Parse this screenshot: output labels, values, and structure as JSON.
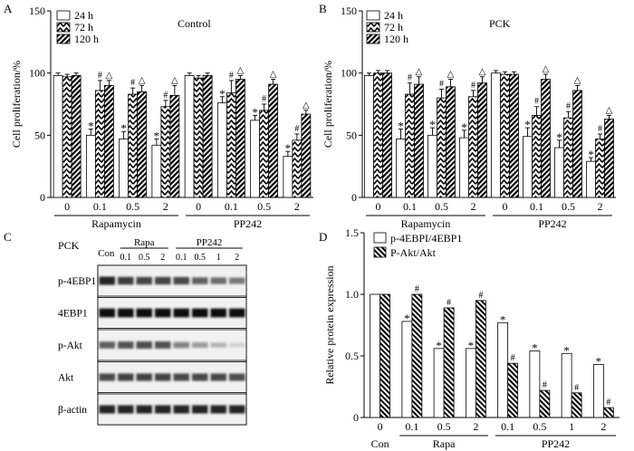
{
  "panel_labels": {
    "a": "A",
    "b": "B",
    "c": "C",
    "d": "D"
  },
  "chart_data": [
    {
      "id": "A",
      "type": "bar",
      "title": "Control",
      "ylabel": "Cell proliferation/%",
      "ylim": [
        0,
        150
      ],
      "yticks": [
        0,
        50,
        100,
        150
      ],
      "categories": [
        "0",
        "0.1",
        "0.5",
        "2",
        "0",
        "0.1",
        "0.5",
        "2"
      ],
      "groups": [
        {
          "label": "Rapamycin",
          "from": 0,
          "to": 3
        },
        {
          "label": "PP242",
          "from": 4,
          "to": 7
        }
      ],
      "legend": [
        "24 h",
        "72 h",
        "120 h"
      ],
      "legend_position": "top-left",
      "series": [
        {
          "name": "24 h",
          "values": [
            98,
            50,
            47,
            42,
            98,
            76,
            62,
            33
          ],
          "errors": [
            2,
            5,
            6,
            5,
            2,
            5,
            4,
            4
          ]
        },
        {
          "name": "72 h",
          "values": [
            97,
            86,
            83,
            73,
            96,
            84,
            70,
            46
          ],
          "errors": [
            2,
            8,
            5,
            5,
            2,
            10,
            5,
            5
          ]
        },
        {
          "name": "120 h",
          "values": [
            98,
            90,
            85,
            82,
            98,
            95,
            91,
            67
          ],
          "errors": [
            2,
            4,
            5,
            8,
            2,
            3,
            4,
            3
          ]
        }
      ],
      "annotations": [
        {
          "cat": 1,
          "series": 0,
          "text": "*"
        },
        {
          "cat": 2,
          "series": 0,
          "text": "*"
        },
        {
          "cat": 3,
          "series": 0,
          "text": "*"
        },
        {
          "cat": 5,
          "series": 0,
          "text": "*"
        },
        {
          "cat": 6,
          "series": 0,
          "text": "*"
        },
        {
          "cat": 7,
          "series": 0,
          "text": "*"
        },
        {
          "cat": 1,
          "series": 1,
          "text": "#"
        },
        {
          "cat": 2,
          "series": 1,
          "text": "#"
        },
        {
          "cat": 3,
          "series": 1,
          "text": "#"
        },
        {
          "cat": 5,
          "series": 1,
          "text": "#"
        },
        {
          "cat": 6,
          "series": 1,
          "text": "#"
        },
        {
          "cat": 7,
          "series": 1,
          "text": "#"
        },
        {
          "cat": 1,
          "series": 2,
          "text": "△"
        },
        {
          "cat": 2,
          "series": 2,
          "text": "△"
        },
        {
          "cat": 3,
          "series": 2,
          "text": "△"
        },
        {
          "cat": 5,
          "series": 2,
          "text": "△"
        },
        {
          "cat": 6,
          "series": 2,
          "text": "△"
        },
        {
          "cat": 7,
          "series": 2,
          "text": "△"
        }
      ]
    },
    {
      "id": "B",
      "type": "bar",
      "title": "PCK",
      "ylabel": "Cell proliferation/%",
      "ylim": [
        0,
        150
      ],
      "yticks": [
        0,
        50,
        100,
        150
      ],
      "categories": [
        "0",
        "0.1",
        "0.5",
        "2",
        "0",
        "0.1",
        "0.5",
        "2"
      ],
      "groups": [
        {
          "label": "Rapamycin",
          "from": 0,
          "to": 3
        },
        {
          "label": "PP242",
          "from": 4,
          "to": 7
        }
      ],
      "legend": [
        "24 h",
        "72 h",
        "120 h"
      ],
      "legend_position": "top-left",
      "series": [
        {
          "name": "24 h",
          "values": [
            98,
            47,
            50,
            48,
            100,
            49,
            40,
            29
          ],
          "errors": [
            2,
            8,
            6,
            6,
            2,
            7,
            6,
            3
          ]
        },
        {
          "name": "72 h",
          "values": [
            100,
            83,
            80,
            81,
            99,
            66,
            64,
            47
          ],
          "errors": [
            2,
            9,
            7,
            5,
            2,
            7,
            5,
            4
          ]
        },
        {
          "name": "120 h",
          "values": [
            100,
            91,
            89,
            92,
            99,
            95,
            86,
            63
          ],
          "errors": [
            2,
            6,
            6,
            5,
            2,
            4,
            4,
            3
          ]
        }
      ],
      "annotations": [
        {
          "cat": 1,
          "series": 0,
          "text": "*"
        },
        {
          "cat": 2,
          "series": 0,
          "text": "*"
        },
        {
          "cat": 3,
          "series": 0,
          "text": "*"
        },
        {
          "cat": 5,
          "series": 0,
          "text": "*"
        },
        {
          "cat": 6,
          "series": 0,
          "text": "*"
        },
        {
          "cat": 7,
          "series": 0,
          "text": "*"
        },
        {
          "cat": 1,
          "series": 1,
          "text": "#"
        },
        {
          "cat": 2,
          "series": 1,
          "text": "#"
        },
        {
          "cat": 3,
          "series": 1,
          "text": "#"
        },
        {
          "cat": 5,
          "series": 1,
          "text": "#"
        },
        {
          "cat": 6,
          "series": 1,
          "text": "#"
        },
        {
          "cat": 7,
          "series": 1,
          "text": "#"
        },
        {
          "cat": 1,
          "series": 2,
          "text": "△"
        },
        {
          "cat": 2,
          "series": 2,
          "text": "△"
        },
        {
          "cat": 3,
          "series": 2,
          "text": "△"
        },
        {
          "cat": 5,
          "series": 2,
          "text": "△"
        },
        {
          "cat": 6,
          "series": 2,
          "text": "△"
        },
        {
          "cat": 7,
          "series": 2,
          "text": "△"
        }
      ]
    },
    {
      "id": "D",
      "type": "bar",
      "title": "",
      "ylabel": "Relative protein expression",
      "ylim": [
        0,
        1.5
      ],
      "yticks": [
        0,
        0.5,
        1.0,
        1.5
      ],
      "ytick_labels": [
        "0",
        "0.5",
        "1.0",
        "1.5"
      ],
      "categories": [
        "0",
        "0.1",
        "0.5",
        "2",
        "0.1",
        "0.5",
        "1",
        "2"
      ],
      "groups": [
        {
          "label": "Con",
          "from": 0,
          "to": 0
        },
        {
          "label": "Rapa",
          "from": 1,
          "to": 3
        },
        {
          "label": "PP242",
          "from": 4,
          "to": 7
        }
      ],
      "legend": [
        "p-4EBPI/4EBP1",
        "P-Akt/Akt"
      ],
      "legend_position": "top-left",
      "series": [
        {
          "name": "p-4EBPI/4EBP1",
          "values": [
            1.0,
            0.78,
            0.56,
            0.56,
            0.77,
            0.54,
            0.52,
            0.43
          ]
        },
        {
          "name": "P-Akt/Akt",
          "values": [
            1.0,
            1.0,
            0.89,
            0.95,
            0.44,
            0.22,
            0.2,
            0.08
          ]
        }
      ],
      "annotations": [
        {
          "cat": 1,
          "series": 0,
          "text": "*"
        },
        {
          "cat": 2,
          "series": 0,
          "text": "*"
        },
        {
          "cat": 3,
          "series": 0,
          "text": "*"
        },
        {
          "cat": 4,
          "series": 0,
          "text": "*"
        },
        {
          "cat": 5,
          "series": 0,
          "text": "*"
        },
        {
          "cat": 6,
          "series": 0,
          "text": "*"
        },
        {
          "cat": 7,
          "series": 0,
          "text": "*"
        },
        {
          "cat": 1,
          "series": 1,
          "text": "#"
        },
        {
          "cat": 2,
          "series": 1,
          "text": "#"
        },
        {
          "cat": 3,
          "series": 1,
          "text": "#"
        },
        {
          "cat": 4,
          "series": 1,
          "text": "#"
        },
        {
          "cat": 5,
          "series": 1,
          "text": "#"
        },
        {
          "cat": 6,
          "series": 1,
          "text": "#"
        },
        {
          "cat": 7,
          "series": 1,
          "text": "#"
        }
      ]
    }
  ],
  "blot": {
    "cell_line": "PCK",
    "con_label": "Con",
    "rapa_label": "Rapa",
    "pp242_label": "PP242",
    "lane_doses": [
      "0.1",
      "0.5",
      "2",
      "0.1",
      "0.5",
      "1",
      "2"
    ],
    "rows": [
      {
        "label": "p-4EBP1",
        "intensity": [
          0.85,
          0.75,
          0.72,
          0.72,
          0.7,
          0.6,
          0.55,
          0.5
        ]
      },
      {
        "label": "4EBP1",
        "intensity": [
          0.95,
          0.95,
          0.95,
          0.95,
          0.95,
          0.95,
          0.95,
          0.95
        ]
      },
      {
        "label": "p-Akt",
        "intensity": [
          0.6,
          0.65,
          0.68,
          0.66,
          0.45,
          0.35,
          0.25,
          0.12
        ]
      },
      {
        "label": "Akt",
        "intensity": [
          0.7,
          0.72,
          0.72,
          0.72,
          0.7,
          0.7,
          0.7,
          0.68
        ]
      },
      {
        "label": "β-actin",
        "intensity": [
          0.85,
          0.85,
          0.85,
          0.85,
          0.85,
          0.85,
          0.85,
          0.85
        ]
      }
    ]
  }
}
